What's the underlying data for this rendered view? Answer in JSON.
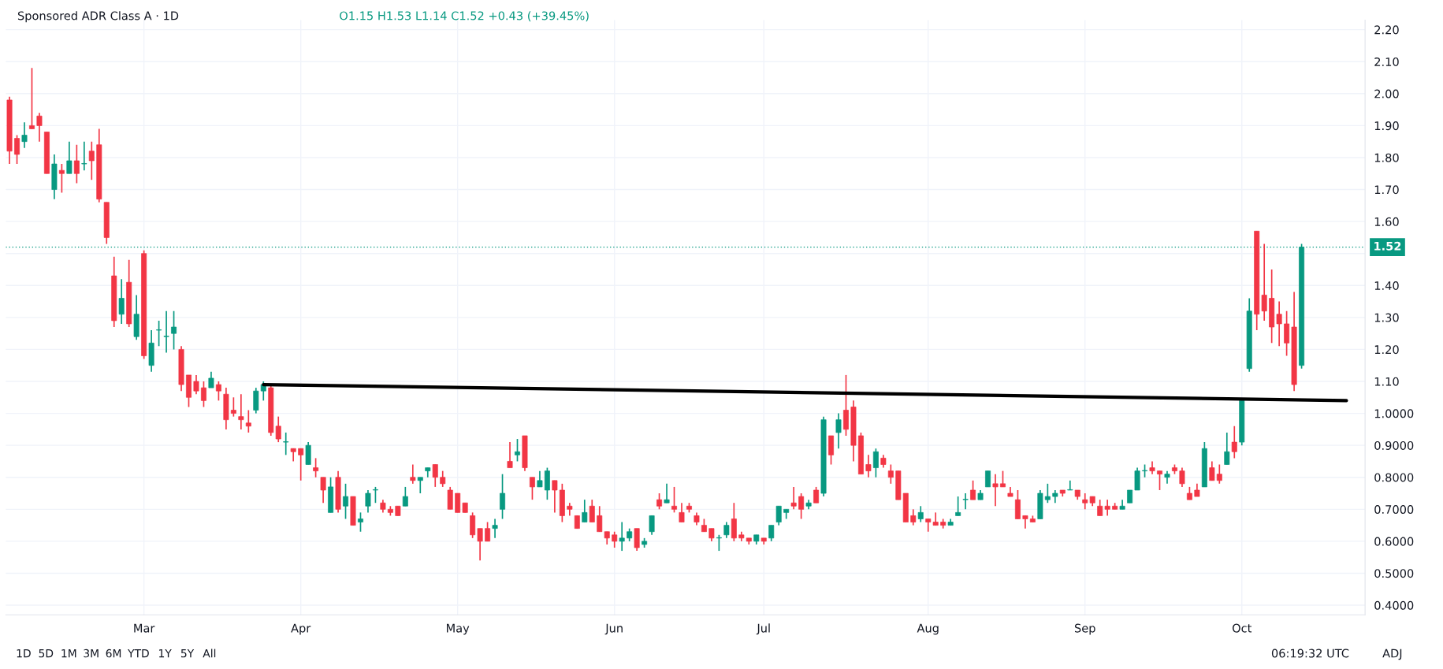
{
  "chart_data": {
    "type": "candlestick",
    "title": "Sponsored ADR Class A · 1D",
    "subtitle": "O1.15 H1.53 L1.14 C1.52 +0.43 (+39.45%)",
    "categories": [
      null,
      null,
      null,
      null,
      null,
      null,
      null,
      null,
      null,
      null,
      null,
      null,
      null,
      null,
      null,
      null,
      null,
      null,
      "Mar",
      null,
      null,
      null,
      null,
      null,
      null,
      null,
      null,
      null,
      null,
      null,
      null,
      null,
      null,
      null,
      null,
      null,
      null,
      null,
      null,
      "Apr",
      null,
      null,
      null,
      null,
      null,
      null,
      null,
      null,
      null,
      null,
      null,
      null,
      null,
      null,
      null,
      null,
      null,
      null,
      null,
      null,
      "May",
      null,
      null,
      null,
      null,
      null,
      null,
      null,
      null,
      null,
      null,
      null,
      null,
      null,
      null,
      null,
      null,
      null,
      null,
      null,
      null,
      "Jun",
      null,
      null,
      null,
      null,
      null,
      null,
      null,
      null,
      null,
      null,
      null,
      null,
      null,
      null,
      null,
      null,
      null,
      null,
      null,
      "Jul",
      null,
      null,
      null,
      null,
      null,
      null,
      null,
      null,
      null,
      null,
      null,
      null,
      null,
      null,
      null,
      null,
      null,
      null,
      null,
      null,
      null,
      "Aug",
      null,
      null,
      null,
      null,
      null,
      null,
      null,
      null,
      null,
      null,
      null,
      null,
      null,
      null,
      null,
      null,
      null,
      null,
      null,
      null,
      "Sep",
      null,
      null,
      null,
      null,
      null,
      null,
      null,
      null,
      null,
      null,
      null,
      null,
      null,
      null,
      null,
      null,
      null,
      null,
      null,
      null,
      "Oct",
      null,
      null,
      null,
      null,
      null,
      null,
      null,
      null,
      null,
      null,
      null,
      null,
      null,
      null,
      null,
      null
    ],
    "ohlc": [
      [
        1.98,
        1.99,
        1.78,
        1.82
      ],
      [
        1.86,
        1.87,
        1.78,
        1.81
      ],
      [
        1.85,
        1.91,
        1.83,
        1.87
      ],
      [
        1.9,
        2.08,
        1.89,
        1.89
      ],
      [
        1.93,
        1.94,
        1.85,
        1.9
      ],
      [
        1.88,
        1.88,
        1.75,
        1.75
      ],
      [
        1.7,
        1.81,
        1.67,
        1.78
      ],
      [
        1.76,
        1.78,
        1.69,
        1.75
      ],
      [
        1.75,
        1.85,
        1.75,
        1.79
      ],
      [
        1.79,
        1.84,
        1.72,
        1.75
      ],
      [
        1.78,
        1.85,
        1.76,
        1.78
      ],
      [
        1.82,
        1.85,
        1.73,
        1.79
      ],
      [
        1.84,
        1.89,
        1.66,
        1.67
      ],
      [
        1.66,
        1.66,
        1.53,
        1.55
      ],
      [
        1.43,
        1.49,
        1.27,
        1.29
      ],
      [
        1.31,
        1.42,
        1.28,
        1.36
      ],
      [
        1.41,
        1.48,
        1.27,
        1.28
      ],
      [
        1.24,
        1.37,
        1.23,
        1.31
      ],
      [
        1.5,
        1.51,
        1.17,
        1.18
      ],
      [
        1.15,
        1.26,
        1.13,
        1.22
      ],
      [
        1.26,
        1.29,
        1.21,
        1.26
      ],
      [
        1.24,
        1.32,
        1.19,
        1.24
      ],
      [
        1.25,
        1.32,
        1.2,
        1.27
      ],
      [
        1.2,
        1.21,
        1.07,
        1.09
      ],
      [
        1.12,
        1.12,
        1.02,
        1.05
      ],
      [
        1.1,
        1.12,
        1.06,
        1.07
      ],
      [
        1.08,
        1.1,
        1.02,
        1.04
      ],
      [
        1.08,
        1.13,
        1.08,
        1.11
      ],
      [
        1.09,
        1.1,
        1.04,
        1.07
      ],
      [
        1.06,
        1.08,
        0.95,
        0.98
      ],
      [
        1.01,
        1.05,
        0.99,
        1.0
      ],
      [
        0.99,
        1.06,
        0.95,
        0.98
      ],
      [
        0.97,
        1.01,
        0.94,
        0.96
      ],
      [
        1.01,
        1.08,
        1.0,
        1.07
      ],
      [
        1.07,
        1.1,
        1.04,
        1.09
      ],
      [
        1.08,
        1.09,
        0.93,
        0.94
      ],
      [
        0.96,
        0.99,
        0.91,
        0.92
      ],
      [
        0.91,
        0.94,
        0.87,
        0.91
      ],
      [
        0.89,
        0.89,
        0.85,
        0.88
      ],
      [
        0.89,
        0.89,
        0.79,
        0.87
      ],
      [
        0.84,
        0.91,
        0.84,
        0.9
      ],
      [
        0.83,
        0.86,
        0.8,
        0.82
      ],
      [
        0.8,
        0.8,
        0.72,
        0.76
      ],
      [
        0.69,
        0.8,
        0.69,
        0.77
      ],
      [
        0.8,
        0.82,
        0.69,
        0.7
      ],
      [
        0.71,
        0.78,
        0.67,
        0.74
      ],
      [
        0.74,
        0.74,
        0.65,
        0.65
      ],
      [
        0.66,
        0.69,
        0.63,
        0.67
      ],
      [
        0.71,
        0.76,
        0.69,
        0.75
      ],
      [
        0.76,
        0.77,
        0.72,
        0.76
      ],
      [
        0.72,
        0.73,
        0.69,
        0.7
      ],
      [
        0.7,
        0.71,
        0.68,
        0.69
      ],
      [
        0.71,
        0.71,
        0.68,
        0.68
      ],
      [
        0.71,
        0.77,
        0.71,
        0.74
      ],
      [
        0.8,
        0.84,
        0.78,
        0.79
      ],
      [
        0.79,
        0.8,
        0.75,
        0.8
      ],
      [
        0.82,
        0.83,
        0.8,
        0.83
      ],
      [
        0.84,
        0.84,
        0.77,
        0.8
      ],
      [
        0.8,
        0.82,
        0.77,
        0.78
      ],
      [
        0.76,
        0.77,
        0.7,
        0.7
      ],
      [
        0.75,
        0.75,
        0.69,
        0.69
      ],
      [
        0.72,
        0.72,
        0.69,
        0.69
      ],
      [
        0.68,
        0.69,
        0.61,
        0.62
      ],
      [
        0.64,
        0.64,
        0.54,
        0.6
      ],
      [
        0.64,
        0.66,
        0.6,
        0.6
      ],
      [
        0.64,
        0.67,
        0.61,
        0.65
      ],
      [
        0.7,
        0.81,
        0.67,
        0.75
      ],
      [
        0.85,
        0.91,
        0.83,
        0.83
      ],
      [
        0.87,
        0.92,
        0.85,
        0.88
      ],
      [
        0.93,
        0.93,
        0.82,
        0.83
      ],
      [
        0.8,
        0.8,
        0.73,
        0.77
      ],
      [
        0.77,
        0.82,
        0.77,
        0.79
      ],
      [
        0.76,
        0.83,
        0.73,
        0.82
      ],
      [
        0.79,
        0.79,
        0.69,
        0.76
      ],
      [
        0.76,
        0.78,
        0.66,
        0.68
      ],
      [
        0.71,
        0.72,
        0.68,
        0.7
      ],
      [
        0.68,
        0.68,
        0.64,
        0.64
      ],
      [
        0.66,
        0.73,
        0.66,
        0.69
      ],
      [
        0.71,
        0.73,
        0.66,
        0.66
      ],
      [
        0.68,
        0.71,
        0.63,
        0.63
      ],
      [
        0.63,
        0.63,
        0.59,
        0.61
      ],
      [
        0.62,
        0.63,
        0.58,
        0.6
      ],
      [
        0.6,
        0.66,
        0.57,
        0.61
      ],
      [
        0.61,
        0.64,
        0.6,
        0.63
      ],
      [
        0.64,
        0.64,
        0.57,
        0.58
      ],
      [
        0.59,
        0.61,
        0.58,
        0.6
      ],
      [
        0.63,
        0.68,
        0.62,
        0.68
      ],
      [
        0.73,
        0.75,
        0.7,
        0.71
      ],
      [
        0.72,
        0.78,
        0.72,
        0.73
      ],
      [
        0.71,
        0.77,
        0.69,
        0.7
      ],
      [
        0.69,
        0.72,
        0.66,
        0.66
      ],
      [
        0.71,
        0.72,
        0.69,
        0.7
      ],
      [
        0.68,
        0.69,
        0.65,
        0.66
      ],
      [
        0.65,
        0.67,
        0.63,
        0.63
      ],
      [
        0.64,
        0.64,
        0.6,
        0.61
      ],
      [
        0.61,
        0.62,
        0.57,
        0.61
      ],
      [
        0.62,
        0.66,
        0.61,
        0.65
      ],
      [
        0.67,
        0.72,
        0.6,
        0.61
      ],
      [
        0.62,
        0.63,
        0.6,
        0.61
      ],
      [
        0.61,
        0.61,
        0.59,
        0.6
      ],
      [
        0.6,
        0.62,
        0.59,
        0.62
      ],
      [
        0.61,
        0.61,
        0.59,
        0.6
      ],
      [
        0.61,
        0.65,
        0.6,
        0.65
      ],
      [
        0.66,
        0.71,
        0.65,
        0.71
      ],
      [
        0.69,
        0.7,
        0.67,
        0.7
      ],
      [
        0.72,
        0.77,
        0.7,
        0.71
      ],
      [
        0.74,
        0.75,
        0.67,
        0.7
      ],
      [
        0.71,
        0.73,
        0.7,
        0.72
      ],
      [
        0.76,
        0.77,
        0.72,
        0.72
      ],
      [
        0.75,
        0.99,
        0.74,
        0.98
      ],
      [
        0.93,
        0.93,
        0.84,
        0.87
      ],
      [
        0.94,
        1.0,
        0.89,
        0.98
      ],
      [
        1.01,
        1.12,
        0.93,
        0.95
      ],
      [
        1.02,
        1.04,
        0.85,
        0.9
      ],
      [
        0.93,
        0.94,
        0.81,
        0.81
      ],
      [
        0.84,
        0.87,
        0.8,
        0.82
      ],
      [
        0.83,
        0.89,
        0.8,
        0.88
      ],
      [
        0.86,
        0.87,
        0.83,
        0.84
      ],
      [
        0.82,
        0.84,
        0.78,
        0.8
      ],
      [
        0.82,
        0.82,
        0.73,
        0.73
      ],
      [
        0.75,
        0.75,
        0.66,
        0.66
      ],
      [
        0.68,
        0.7,
        0.65,
        0.66
      ],
      [
        0.67,
        0.71,
        0.66,
        0.69
      ],
      [
        0.67,
        0.67,
        0.63,
        0.66
      ],
      [
        0.66,
        0.69,
        0.65,
        0.65
      ],
      [
        0.66,
        0.67,
        0.64,
        0.65
      ],
      [
        0.65,
        0.67,
        0.65,
        0.66
      ],
      [
        0.68,
        0.74,
        0.68,
        0.69
      ],
      [
        0.73,
        0.75,
        0.7,
        0.73
      ],
      [
        0.76,
        0.79,
        0.73,
        0.73
      ],
      [
        0.73,
        0.76,
        0.73,
        0.75
      ],
      [
        0.77,
        0.82,
        0.77,
        0.82
      ],
      [
        0.78,
        0.81,
        0.71,
        0.77
      ],
      [
        0.78,
        0.82,
        0.77,
        0.77
      ],
      [
        0.75,
        0.77,
        0.74,
        0.74
      ],
      [
        0.73,
        0.76,
        0.67,
        0.67
      ],
      [
        0.68,
        0.68,
        0.64,
        0.67
      ],
      [
        0.67,
        0.68,
        0.66,
        0.66
      ],
      [
        0.67,
        0.76,
        0.67,
        0.75
      ],
      [
        0.73,
        0.78,
        0.72,
        0.74
      ],
      [
        0.74,
        0.76,
        0.72,
        0.75
      ],
      [
        0.76,
        0.76,
        0.74,
        0.75
      ],
      [
        0.76,
        0.79,
        0.76,
        0.76
      ],
      [
        0.76,
        0.76,
        0.73,
        0.74
      ],
      [
        0.73,
        0.75,
        0.7,
        0.72
      ],
      [
        0.74,
        0.74,
        0.71,
        0.72
      ],
      [
        0.71,
        0.73,
        0.68,
        0.68
      ],
      [
        0.71,
        0.73,
        0.68,
        0.7
      ],
      [
        0.71,
        0.72,
        0.7,
        0.7
      ],
      [
        0.7,
        0.73,
        0.7,
        0.71
      ],
      [
        0.72,
        0.76,
        0.72,
        0.76
      ],
      [
        0.76,
        0.83,
        0.76,
        0.82
      ],
      [
        0.82,
        0.84,
        0.8,
        0.82
      ],
      [
        0.83,
        0.85,
        0.81,
        0.82
      ],
      [
        0.82,
        0.82,
        0.76,
        0.81
      ],
      [
        0.8,
        0.82,
        0.78,
        0.81
      ],
      [
        0.83,
        0.84,
        0.81,
        0.82
      ],
      [
        0.82,
        0.83,
        0.77,
        0.78
      ],
      [
        0.75,
        0.77,
        0.73,
        0.73
      ],
      [
        0.76,
        0.78,
        0.74,
        0.74
      ],
      [
        0.77,
        0.91,
        0.77,
        0.89
      ],
      [
        0.83,
        0.85,
        0.79,
        0.79
      ],
      [
        0.81,
        0.84,
        0.78,
        0.79
      ],
      [
        0.84,
        0.94,
        0.84,
        0.88
      ],
      [
        0.91,
        0.96,
        0.86,
        0.88
      ],
      [
        0.91,
        1.04,
        0.9,
        1.04
      ],
      [
        1.14,
        1.36,
        1.13,
        1.32
      ],
      [
        1.57,
        1.57,
        1.26,
        1.31
      ],
      [
        1.37,
        1.53,
        1.29,
        1.32
      ],
      [
        1.36,
        1.45,
        1.22,
        1.27
      ],
      [
        1.31,
        1.35,
        1.21,
        1.28
      ],
      [
        1.28,
        1.32,
        1.18,
        1.22
      ],
      [
        1.27,
        1.38,
        1.07,
        1.09
      ],
      [
        1.15,
        1.53,
        1.14,
        1.52
      ],
      null,
      null,
      null,
      null,
      null,
      null,
      null,
      null
    ],
    "colors": [
      "#f23645",
      "#f23645",
      "#089981",
      "#f23645",
      "#f23645",
      "#f23645",
      "#089981",
      "#f23645",
      "#089981",
      "#f23645",
      "#089981",
      "#f23645",
      "#f23645",
      "#f23645",
      "#f23645",
      "#089981",
      "#f23645",
      "#089981",
      "#f23645",
      "#089981",
      "#089981",
      "#089981",
      "#089981",
      "#f23645",
      "#f23645",
      "#f23645",
      "#f23645",
      "#089981",
      "#f23645",
      "#f23645",
      "#f23645",
      "#f23645",
      "#f23645",
      "#089981",
      "#089981",
      "#f23645",
      "#f23645",
      "#089981",
      "#f23645",
      "#f23645",
      "#089981",
      "#f23645",
      "#f23645",
      "#089981",
      "#f23645",
      "#089981",
      "#f23645",
      "#089981",
      "#089981",
      "#089981",
      "#f23645",
      "#f23645",
      "#f23645",
      "#089981",
      "#f23645",
      "#089981",
      "#089981",
      "#f23645",
      "#f23645",
      "#f23645",
      "#f23645",
      "#f23645",
      "#f23645",
      "#f23645",
      "#f23645",
      "#089981",
      "#089981",
      "#f23645",
      "#089981",
      "#f23645",
      "#f23645",
      "#089981",
      "#089981",
      "#f23645",
      "#f23645",
      "#f23645",
      "#f23645",
      "#089981",
      "#f23645",
      "#f23645",
      "#f23645",
      "#f23645",
      "#089981",
      "#089981",
      "#f23645",
      "#089981",
      "#089981",
      "#f23645",
      "#089981",
      "#f23645",
      "#f23645",
      "#f23645",
      "#f23645",
      "#f23645",
      "#f23645",
      "#089981",
      "#089981",
      "#f23645",
      "#f23645",
      "#f23645",
      "#089981",
      "#f23645",
      "#089981",
      "#089981",
      "#089981",
      "#f23645",
      "#f23645",
      "#089981",
      "#f23645",
      "#089981",
      "#f23645",
      "#089981",
      "#f23645",
      "#f23645",
      "#f23645",
      "#f23645",
      "#089981",
      "#f23645",
      "#f23645",
      "#f23645",
      "#f23645",
      "#f23645",
      "#089981",
      "#f23645",
      "#f23645",
      "#f23645",
      "#089981",
      "#089981",
      "#089981",
      "#f23645",
      "#089981",
      "#089981",
      "#f23645",
      "#f23645",
      "#f23645",
      "#f23645",
      "#f23645",
      "#f23645",
      "#089981",
      "#089981",
      "#089981",
      "#f23645",
      "#089981",
      "#f23645",
      "#f23645",
      "#f23645",
      "#f23645",
      "#f23645",
      "#f23645",
      "#089981",
      "#089981",
      "#089981",
      "#089981",
      "#f23645",
      "#f23645",
      "#089981",
      "#f23645",
      "#f23645",
      "#f23645",
      "#f23645",
      "#089981",
      "#f23645",
      "#f23645",
      "#089981",
      "#f23645",
      "#089981",
      "#089981",
      "#f23645",
      "#f23645",
      "#f23645",
      "#f23645",
      "#f23645",
      "#f23645",
      "#089981",
      null,
      null,
      null,
      null,
      null,
      null,
      null,
      null
    ],
    "series": [
      {
        "type": "line",
        "color": "#000000",
        "values": [
          null,
          null,
          null,
          null,
          null,
          null,
          null,
          null,
          null,
          null,
          null,
          null,
          null,
          null,
          null,
          null,
          null,
          null,
          null,
          null,
          null,
          null,
          null,
          null,
          null,
          null,
          null,
          null,
          null,
          null,
          null,
          null,
          null,
          null,
          1.09,
          null,
          null,
          null,
          null,
          null,
          null,
          null,
          null,
          null,
          null,
          null,
          null,
          null,
          null,
          null,
          null,
          null,
          null,
          null,
          null,
          null,
          null,
          null,
          null,
          null,
          null,
          null,
          null,
          null,
          null,
          null,
          null,
          null,
          null,
          null,
          null,
          null,
          null,
          null,
          null,
          null,
          null,
          null,
          null,
          null,
          null,
          null,
          null,
          null,
          null,
          null,
          null,
          null,
          null,
          null,
          null,
          null,
          null,
          null,
          null,
          null,
          null,
          null,
          null,
          null,
          null,
          null,
          null,
          null,
          null,
          null,
          null,
          null,
          null,
          null,
          null,
          null,
          null,
          null,
          null,
          null,
          null,
          null,
          null,
          null,
          null,
          null,
          null,
          null,
          null,
          null,
          null,
          null,
          null,
          null,
          null,
          null,
          null,
          null,
          null,
          null,
          null,
          null,
          null,
          null,
          null,
          null,
          null,
          null,
          null,
          null,
          null,
          null,
          null,
          null,
          null,
          null,
          null,
          null,
          null,
          null,
          null,
          null,
          null,
          null,
          null,
          null,
          null,
          null,
          null,
          null,
          null,
          null,
          null,
          null,
          null,
          null,
          null,
          null,
          null,
          null,
          null,
          null,
          null,
          1.04,
          null,
          null
        ]
      }
    ],
    "ylim": [
      0.37,
      2.23
    ],
    "yticks": [
      {
        "value": 0.4,
        "label": "0.4000"
      },
      {
        "value": 0.5,
        "label": "0.5000"
      },
      {
        "value": 0.6,
        "label": "0.6000"
      },
      {
        "value": 0.7,
        "label": "0.7000"
      },
      {
        "value": 0.8,
        "label": "0.8000"
      },
      {
        "value": 0.9,
        "label": "0.9000"
      },
      {
        "value": 1.0,
        "label": "1.0000"
      },
      {
        "value": 1.1,
        "label": "1.10"
      },
      {
        "value": 1.2,
        "label": "1.20"
      },
      {
        "value": 1.3,
        "label": "1.30"
      },
      {
        "value": 1.4,
        "label": "1.40"
      },
      {
        "value": 1.5,
        "label": null
      },
      {
        "value": 1.6,
        "label": "1.60"
      },
      {
        "value": 1.7,
        "label": "1.70"
      },
      {
        "value": 1.8,
        "label": "1.80"
      },
      {
        "value": 1.9,
        "label": "1.90"
      },
      {
        "value": 2.0,
        "label": "2.00"
      },
      {
        "value": 2.1,
        "label": "2.10"
      },
      {
        "value": 2.2,
        "label": "2.20"
      }
    ],
    "ref_lines": [
      {
        "axis": "y",
        "value": 1.52,
        "label": "1.52",
        "color": "#089981",
        "line_style": "dotted"
      }
    ],
    "grid": true,
    "annotations": [
      "1D",
      "5D",
      "1M",
      "3M",
      "6M",
      "YTD",
      "1Y",
      "5Y",
      "All",
      "06:19:32 UTC",
      "ADJ"
    ]
  }
}
